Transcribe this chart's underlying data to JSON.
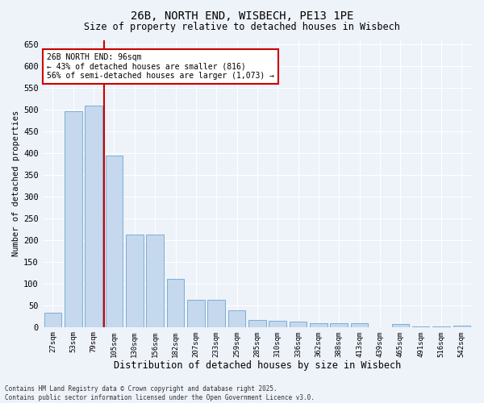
{
  "title_line1": "26B, NORTH END, WISBECH, PE13 1PE",
  "title_line2": "Size of property relative to detached houses in Wisbech",
  "xlabel": "Distribution of detached houses by size in Wisbech",
  "ylabel": "Number of detached properties",
  "categories": [
    "27sqm",
    "53sqm",
    "79sqm",
    "105sqm",
    "130sqm",
    "156sqm",
    "182sqm",
    "207sqm",
    "233sqm",
    "259sqm",
    "285sqm",
    "310sqm",
    "336sqm",
    "362sqm",
    "388sqm",
    "413sqm",
    "439sqm",
    "465sqm",
    "491sqm",
    "516sqm",
    "542sqm"
  ],
  "values": [
    32,
    497,
    510,
    395,
    212,
    212,
    110,
    63,
    63,
    38,
    16,
    15,
    12,
    9,
    9,
    9,
    0,
    6,
    2,
    1,
    4
  ],
  "bar_color": "#c5d8ed",
  "bar_edge_color": "#7bafd4",
  "vline_x": 2.5,
  "vline_color": "#cc0000",
  "annotation_text": "26B NORTH END: 96sqm\n← 43% of detached houses are smaller (816)\n56% of semi-detached houses are larger (1,073) →",
  "annotation_box_color": "#ffffff",
  "annotation_box_edge_color": "#cc0000",
  "ylim": [
    0,
    660
  ],
  "yticks": [
    0,
    50,
    100,
    150,
    200,
    250,
    300,
    350,
    400,
    450,
    500,
    550,
    600,
    650
  ],
  "background_color": "#eef2f9",
  "grid_color": "#ffffff",
  "footer_line1": "Contains HM Land Registry data © Crown copyright and database right 2025.",
  "footer_line2": "Contains public sector information licensed under the Open Government Licence v3.0."
}
